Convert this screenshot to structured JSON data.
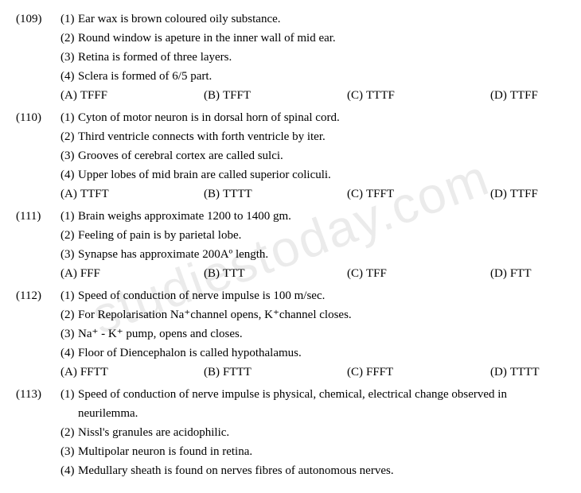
{
  "watermark": "studiestoday.com",
  "questions": [
    {
      "num": "(109)",
      "statements": [
        {
          "n": "(1)",
          "t": "Ear wax is brown coloured oily substance."
        },
        {
          "n": "(2)",
          "t": "Round window is apeture in the inner wall of mid ear."
        },
        {
          "n": "(3)",
          "t": "Retina is formed of three layers."
        },
        {
          "n": "(4)",
          "t": "Sclera is formed of 6/5 part."
        }
      ],
      "options": {
        "A": "TFFF",
        "B": "TFFT",
        "C": "TTTF",
        "D": "TTFF"
      }
    },
    {
      "num": "(110)",
      "statements": [
        {
          "n": "(1)",
          "t": "Cyton of motor neuron is in dorsal horn of spinal cord."
        },
        {
          "n": "(2)",
          "t": "Third ventricle connects with forth ventricle by iter."
        },
        {
          "n": "(3)",
          "t": "Grooves of cerebral cortex are called sulci."
        },
        {
          "n": "(4)",
          "t": "Upper lobes of mid brain are called superior coliculi."
        }
      ],
      "options": {
        "A": "TTFT",
        "B": "TTTT",
        "C": "TFFT",
        "D": "TTFF"
      }
    },
    {
      "num": "(111)",
      "statements": [
        {
          "n": "(1)",
          "t": "Brain weighs approximate 1200 to 1400 gm."
        },
        {
          "n": "(2)",
          "t": "Feeling of pain is by parietal lobe."
        },
        {
          "n": "(3)",
          "t": "Synapse has approximate 200Aº length."
        }
      ],
      "options": {
        "A": "FFF",
        "B": "TTT",
        "C": "TFF",
        "D": "FTT"
      }
    },
    {
      "num": "(112)",
      "statements": [
        {
          "n": "(1)",
          "t": "Speed of conduction of nerve impulse is 100 m/sec."
        },
        {
          "n": "(2)",
          "t": "For Repolarisation Na⁺channel opens, K⁺channel closes."
        },
        {
          "n": "(3)",
          "t": "Na⁺ - K⁺ pump, opens and closes."
        },
        {
          "n": "(4)",
          "t": "Floor of Diencephalon is called hypothalamus."
        }
      ],
      "options": {
        "A": "FFTT",
        "B": "FTTT",
        "C": "FFFT",
        "D": "TTTT"
      }
    },
    {
      "num": "(113)",
      "statements": [
        {
          "n": "(1)",
          "t": "Speed of conduction of nerve impulse is physical, chemical, electrical change observed in neurilemma."
        },
        {
          "n": "(2)",
          "t": "Nissl's granules are acidophilic."
        },
        {
          "n": "(3)",
          "t": "Multipolar neuron is found in retina."
        },
        {
          "n": "(4)",
          "t": "Medullary sheath is found on nerves fibres of autonomous nerves."
        }
      ],
      "options": null
    }
  ],
  "option_labels": {
    "A": "(A)",
    "B": "(B)",
    "C": "(C)",
    "D": "(D)"
  }
}
